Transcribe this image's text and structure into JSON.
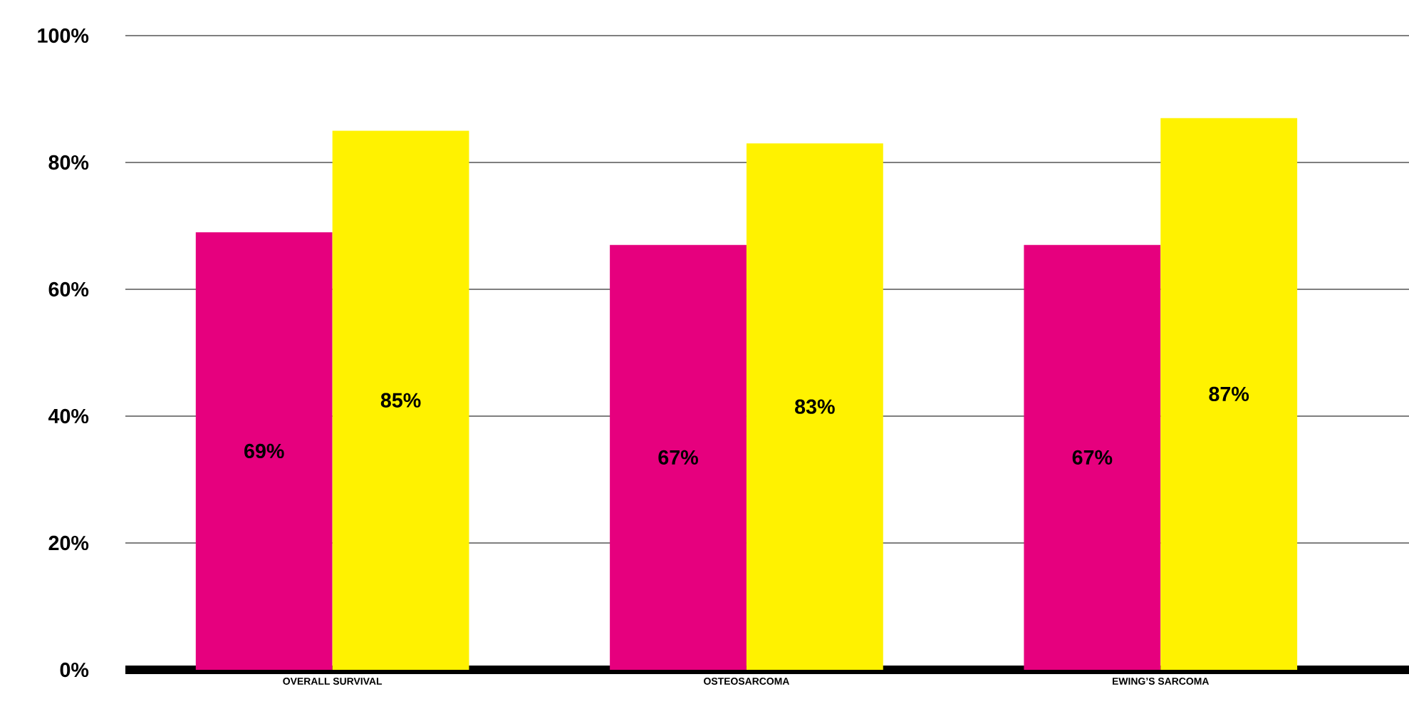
{
  "chart_data": {
    "type": "bar",
    "categories": [
      "OVERALL SURVIVAL",
      "OSTEOSARCOMA",
      "EWING’S SARCOMA"
    ],
    "series": [
      {
        "color": "#e6007e",
        "values": [
          69,
          67,
          67
        ],
        "value_labels": [
          "69%",
          "67%",
          "67%"
        ]
      },
      {
        "color": "#fff200",
        "values": [
          85,
          83,
          87
        ],
        "value_labels": [
          "85%",
          "83%",
          "87%"
        ]
      }
    ],
    "ylim": [
      0,
      100
    ],
    "yticks": [
      {
        "value": 0,
        "label": "0%"
      },
      {
        "value": 20,
        "label": "20%"
      },
      {
        "value": 40,
        "label": "40%"
      },
      {
        "value": 60,
        "label": "60%"
      },
      {
        "value": 80,
        "label": "80%"
      },
      {
        "value": 100,
        "label": "100%"
      }
    ],
    "grid": "y"
  }
}
